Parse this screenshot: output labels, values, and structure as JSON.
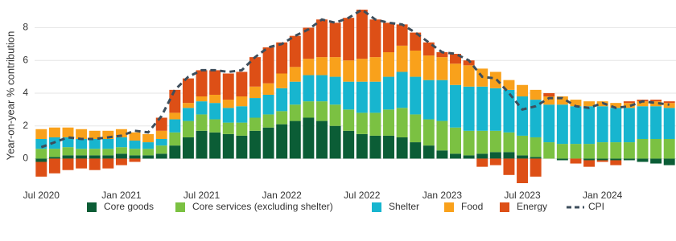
{
  "chart_data": {
    "type": "bar",
    "stacked": true,
    "y_label": "Year-on-year % contribution",
    "categories": [
      "Jul 2020",
      null,
      null,
      null,
      null,
      null,
      "Jan 2021",
      null,
      null,
      null,
      null,
      null,
      "Jul 2021",
      null,
      null,
      null,
      null,
      null,
      "Jan 2022",
      null,
      null,
      null,
      null,
      null,
      "Jul 2022",
      null,
      null,
      null,
      null,
      null,
      "Jan 2023",
      null,
      null,
      null,
      null,
      null,
      "Jul 2023",
      null,
      null,
      null,
      null,
      null,
      "Jan 2024",
      null,
      null,
      null,
      null,
      null
    ],
    "series": [
      {
        "name": "Core goods",
        "color": "#0b5d36",
        "values": [
          -0.2,
          0.1,
          0.2,
          0.2,
          0.2,
          0.2,
          0.3,
          0.2,
          0.2,
          0.3,
          0.8,
          1.3,
          1.7,
          1.6,
          1.5,
          1.4,
          1.7,
          1.9,
          2.1,
          2.3,
          2.5,
          2.3,
          2.0,
          1.7,
          1.5,
          1.4,
          1.4,
          1.3,
          1.0,
          0.8,
          0.5,
          0.3,
          0.2,
          0.3,
          0.4,
          0.4,
          0.2,
          0.1,
          0.0,
          -0.1,
          0.0,
          -0.1,
          -0.1,
          -0.1,
          -0.1,
          -0.2,
          -0.3,
          -0.4
        ]
      },
      {
        "name": "Core services (excluding shelter)",
        "color": "#7bc142",
        "values": [
          0.6,
          0.5,
          0.5,
          0.4,
          0.4,
          0.4,
          0.4,
          0.4,
          0.4,
          0.5,
          0.8,
          1.0,
          1.0,
          0.8,
          0.7,
          0.8,
          0.8,
          0.8,
          0.8,
          1.0,
          1.0,
          1.2,
          1.3,
          1.3,
          1.3,
          1.4,
          1.6,
          1.8,
          1.7,
          1.6,
          1.8,
          1.6,
          1.5,
          1.4,
          1.3,
          1.2,
          1.2,
          1.2,
          1.0,
          0.9,
          0.9,
          0.9,
          1.0,
          1.0,
          1.0,
          1.2,
          1.2,
          1.2
        ]
      },
      {
        "name": "Shelter",
        "color": "#17b5cf",
        "values": [
          0.6,
          0.7,
          0.6,
          0.6,
          0.6,
          0.6,
          0.6,
          0.5,
          0.4,
          0.4,
          0.8,
          0.8,
          0.8,
          1.0,
          0.9,
          1.0,
          1.2,
          1.2,
          1.4,
          1.4,
          1.6,
          1.6,
          1.7,
          1.7,
          1.9,
          1.9,
          2.0,
          2.2,
          2.3,
          2.4,
          2.5,
          2.6,
          2.7,
          2.7,
          2.6,
          2.6,
          2.4,
          2.3,
          2.3,
          2.4,
          2.3,
          2.3,
          2.2,
          2.1,
          2.1,
          2.0,
          2.0,
          1.9
        ]
      },
      {
        "name": "Food",
        "color": "#f9a11b",
        "values": [
          0.6,
          0.6,
          0.6,
          0.6,
          0.5,
          0.5,
          0.5,
          0.5,
          0.5,
          0.5,
          0.4,
          0.3,
          0.3,
          0.5,
          0.5,
          0.6,
          0.7,
          0.7,
          0.9,
          0.9,
          1.0,
          1.1,
          1.2,
          1.3,
          1.4,
          1.5,
          1.5,
          1.6,
          1.6,
          1.5,
          1.4,
          1.3,
          1.3,
          1.1,
          1.0,
          0.6,
          0.7,
          0.6,
          0.5,
          0.5,
          0.4,
          0.3,
          0.3,
          0.3,
          0.3,
          0.3,
          0.3,
          0.3
        ]
      },
      {
        "name": "Energy",
        "color": "#dd4f16",
        "values": [
          -0.9,
          -0.9,
          -0.7,
          -0.6,
          -0.7,
          -0.6,
          -0.4,
          -0.2,
          0.0,
          0.8,
          1.4,
          1.5,
          1.6,
          1.5,
          1.6,
          1.5,
          1.8,
          2.2,
          1.9,
          1.9,
          1.9,
          2.3,
          2.1,
          2.6,
          3.0,
          2.3,
          1.8,
          1.3,
          1.1,
          0.8,
          0.3,
          0.6,
          0.3,
          -0.5,
          -0.4,
          -1.0,
          -1.5,
          -1.1,
          0.2,
          0.0,
          -0.3,
          -0.4,
          -0.1,
          -0.3,
          0.1,
          0.1,
          0.1,
          0.1
        ]
      }
    ],
    "line_series": {
      "name": "CPI",
      "color": "#3d4e5c",
      "values": [
        0.7,
        1.0,
        1.3,
        1.2,
        1.2,
        1.3,
        1.4,
        1.7,
        1.6,
        2.6,
        4.2,
        5.0,
        5.4,
        5.4,
        5.3,
        5.4,
        6.2,
        6.8,
        7.0,
        7.5,
        7.9,
        8.5,
        8.3,
        8.6,
        9.1,
        8.5,
        8.3,
        8.2,
        7.7,
        7.1,
        6.5,
        6.4,
        6.0,
        5.0,
        4.9,
        4.0,
        3.0,
        3.2,
        3.7,
        3.7,
        3.2,
        3.1,
        3.4,
        3.1,
        3.2,
        3.5,
        3.4,
        3.3
      ]
    },
    "ylim": [
      -1.5,
      9.2
    ],
    "yticks": [
      0,
      2,
      4,
      6,
      8
    ],
    "grid": true,
    "legend": "bottom"
  }
}
